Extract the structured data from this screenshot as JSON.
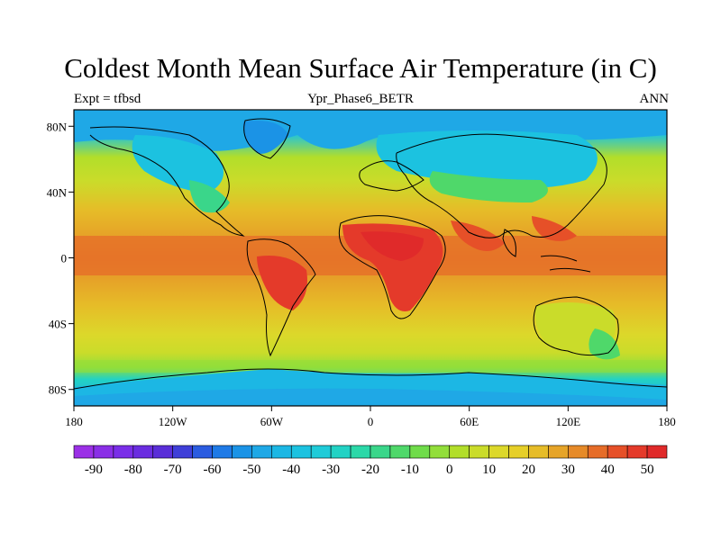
{
  "title": "Coldest Month Mean Surface Air Temperature (in C)",
  "subtitle_left": "Expt = tfbsd",
  "subtitle_center": "Ypr_Phase6_BETR",
  "subtitle_right": "ANN",
  "map": {
    "projection": "cylindrical-equidistant",
    "lon_range": [
      -180,
      180
    ],
    "lat_range": [
      -90,
      90
    ],
    "lon_ticks": [
      "180",
      "120W",
      "60W",
      "0",
      "60E",
      "120E",
      "180"
    ],
    "lat_ticks": [
      "80N",
      "40N",
      "0",
      "40S",
      "80S"
    ]
  },
  "colorbar": {
    "labels": [
      "-90",
      "-80",
      "-70",
      "-60",
      "-50",
      "-40",
      "-30",
      "-20",
      "-10",
      "0",
      "10",
      "20",
      "30",
      "40",
      "50"
    ],
    "colors": [
      "#9b30e6",
      "#8a2fe6",
      "#7a2ee8",
      "#6a2de0",
      "#5a2ed8",
      "#3f3fd8",
      "#2b5ce0",
      "#1f7ae6",
      "#1b93e6",
      "#1fa8e6",
      "#1cb7e4",
      "#1cc2e0",
      "#1fcbd8",
      "#22d2c4",
      "#2bd8a8",
      "#3ad68a",
      "#4fd86a",
      "#6fdc4a",
      "#92de3a",
      "#b2de2a",
      "#cadc2a",
      "#dcd82a",
      "#e6cf28",
      "#e6bc28",
      "#e6a428",
      "#e68a28",
      "#e66c28",
      "#e65028",
      "#e43a2a",
      "#e02a2a"
    ]
  }
}
